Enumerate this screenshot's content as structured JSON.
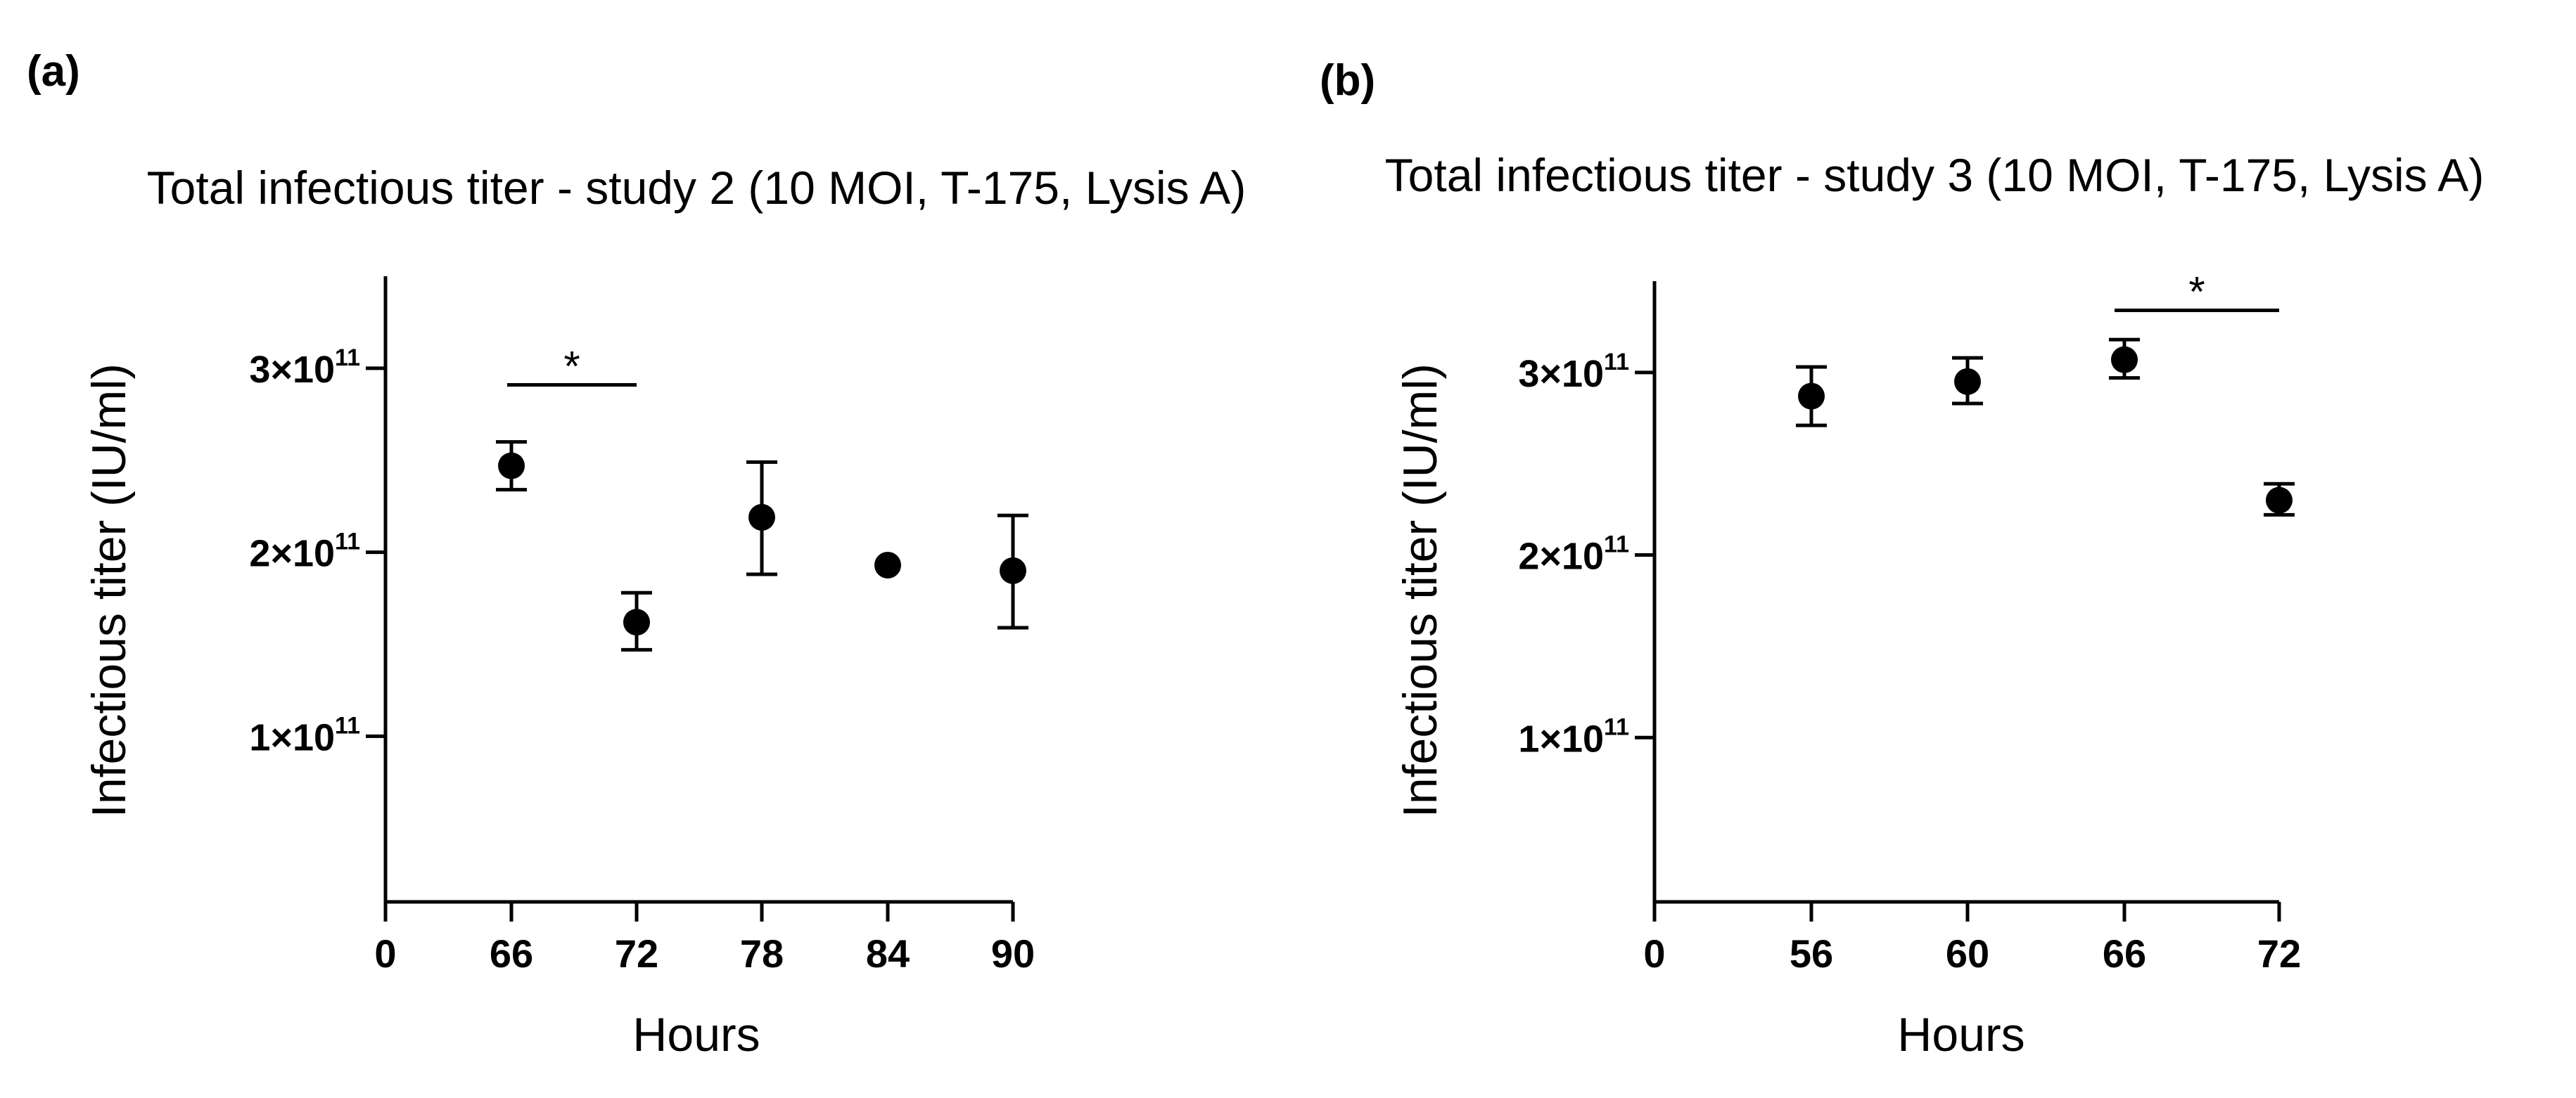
{
  "chart_data": [
    {
      "panel": "(a)",
      "type": "scatter",
      "title": "Total infectious titer - study 2 (10 MOI, T-175, Lysis A)",
      "xlabel": "Hours",
      "ylabel": "Infectious titer (IU/ml)",
      "x_ticks": [
        "0",
        "66",
        "72",
        "78",
        "84",
        "90"
      ],
      "y_ticks": [
        {
          "value": 100000000000,
          "base": "1×10",
          "exp": "11"
        },
        {
          "value": 200000000000,
          "base": "2×10",
          "exp": "11"
        },
        {
          "value": 300000000000,
          "base": "3×10",
          "exp": "11"
        }
      ],
      "ylim": [
        10000000000,
        350000000000
      ],
      "grid": false,
      "points": [
        {
          "x": "66",
          "y": 247000000000,
          "err_low": 234000000000,
          "err_high": 260000000000
        },
        {
          "x": "72",
          "y": 162000000000,
          "err_low": 147000000000,
          "err_high": 178000000000
        },
        {
          "x": "78",
          "y": 219000000000,
          "err_low": 188000000000,
          "err_high": 249000000000
        },
        {
          "x": "84",
          "y": 193000000000,
          "err_low": 193000000000,
          "err_high": 193000000000
        },
        {
          "x": "90",
          "y": 190000000000,
          "err_low": 159000000000,
          "err_high": 220000000000
        }
      ],
      "significance": [
        {
          "from": "66",
          "to": "72",
          "label": "*",
          "y": 291000000000
        }
      ]
    },
    {
      "panel": "(b)",
      "type": "scatter",
      "title": "Total infectious titer - study 3 (10 MOI, T-175, Lysis A)",
      "xlabel": "Hours",
      "ylabel": "Infectious titer (IU/ml)",
      "x_ticks": [
        "0",
        "56",
        "60",
        "66",
        "72"
      ],
      "y_ticks": [
        {
          "value": 100000000000,
          "base": "1×10",
          "exp": "11"
        },
        {
          "value": 200000000000,
          "base": "2×10",
          "exp": "11"
        },
        {
          "value": 300000000000,
          "base": "3×10",
          "exp": "11"
        }
      ],
      "ylim": [
        10000000000,
        350000000000
      ],
      "grid": false,
      "points": [
        {
          "x": "56",
          "y": 287000000000,
          "err_low": 271000000000,
          "err_high": 303000000000
        },
        {
          "x": "60",
          "y": 295000000000,
          "err_low": 283000000000,
          "err_high": 308000000000
        },
        {
          "x": "66",
          "y": 307000000000,
          "err_low": 297000000000,
          "err_high": 318000000000
        },
        {
          "x": "72",
          "y": 230000000000,
          "err_low": 222000000000,
          "err_high": 239000000000
        }
      ],
      "significance": [
        {
          "from": "66",
          "to": "72",
          "label": "*",
          "y": 334000000000
        }
      ]
    }
  ]
}
